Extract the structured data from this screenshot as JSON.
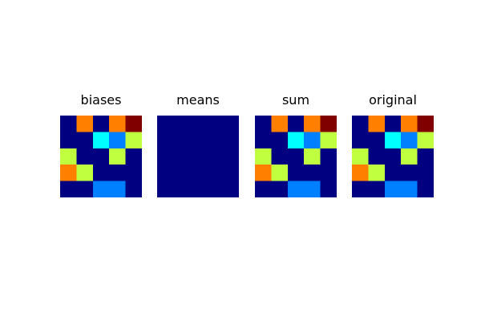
{
  "chart_data": [
    {
      "type": "heatmap",
      "title": "biases",
      "colormap": "jet",
      "vmin": 0,
      "vmax": 4,
      "values": [
        [
          0,
          3,
          0,
          3,
          4
        ],
        [
          0,
          0,
          1.5,
          1,
          2.25
        ],
        [
          2.25,
          0,
          0,
          2.25,
          0
        ],
        [
          3,
          2.25,
          0,
          0,
          0
        ],
        [
          0,
          0,
          1,
          1,
          0
        ]
      ]
    },
    {
      "type": "heatmap",
      "title": "means",
      "colormap": "jet",
      "vmin": 0,
      "vmax": 4,
      "values": [
        [
          0,
          0,
          0,
          0,
          0
        ],
        [
          0,
          0,
          0,
          0,
          0
        ],
        [
          0,
          0,
          0,
          0,
          0
        ],
        [
          0,
          0,
          0,
          0,
          0
        ],
        [
          0,
          0,
          0,
          0,
          0
        ]
      ]
    },
    {
      "type": "heatmap",
      "title": "sum",
      "colormap": "jet",
      "vmin": 0,
      "vmax": 4,
      "values": [
        [
          0,
          3,
          0,
          3,
          4
        ],
        [
          0,
          0,
          1.5,
          1,
          2.25
        ],
        [
          2.25,
          0,
          0,
          2.25,
          0
        ],
        [
          3,
          2.25,
          0,
          0,
          0
        ],
        [
          0,
          0,
          1,
          1,
          0
        ]
      ]
    },
    {
      "type": "heatmap",
      "title": "original",
      "colormap": "jet",
      "vmin": 0,
      "vmax": 4,
      "values": [
        [
          0,
          3,
          0,
          3,
          4
        ],
        [
          0,
          0,
          1.5,
          1,
          2.25
        ],
        [
          2.25,
          0,
          0,
          2.25,
          0
        ],
        [
          3,
          2.25,
          0,
          0,
          0
        ],
        [
          0,
          0,
          1,
          1,
          0
        ]
      ]
    }
  ]
}
